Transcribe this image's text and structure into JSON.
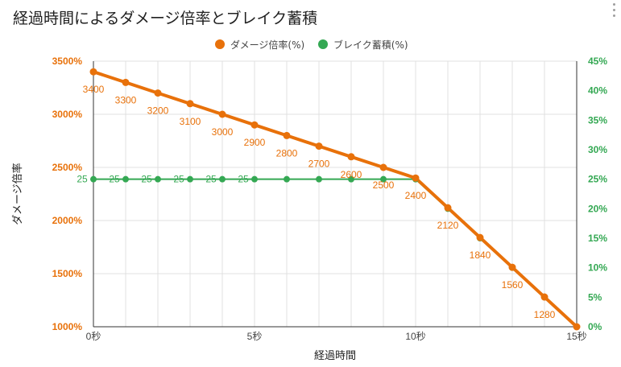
{
  "title": "経過時間によるダメージ倍率とブレイク蓄積",
  "colors": {
    "damage": "#e8710a",
    "break": "#34a853",
    "grid": "#e0e0e0"
  },
  "chart_data": {
    "type": "line",
    "title": "経過時間によるダメージ倍率とブレイク蓄積",
    "xlabel": "経過時間",
    "ylabel": "ダメージ倍率",
    "y2label": "",
    "x": [
      0,
      1,
      2,
      3,
      4,
      5,
      6,
      7,
      8,
      9,
      10,
      11,
      12,
      13,
      14,
      15
    ],
    "x_ticks": [
      {
        "value": 0,
        "label": "0秒"
      },
      {
        "value": 5,
        "label": "5秒"
      },
      {
        "value": 10,
        "label": "10秒"
      },
      {
        "value": 15,
        "label": "15秒"
      }
    ],
    "ylim": [
      1000,
      3500
    ],
    "y_ticks": [
      "1000%",
      "1500%",
      "2000%",
      "2500%",
      "3000%",
      "3500%"
    ],
    "y2lim": [
      0,
      45
    ],
    "y2_ticks": [
      "0%",
      "5%",
      "10%",
      "15%",
      "20%",
      "25%",
      "30%",
      "35%",
      "40%",
      "45%"
    ],
    "legend_position": "top-center",
    "grid": true,
    "series": [
      {
        "name": "ダメージ倍率(%)",
        "axis": "left",
        "values": [
          3400,
          3300,
          3200,
          3100,
          3000,
          2900,
          2800,
          2700,
          2600,
          2500,
          2400,
          2120,
          1840,
          1560,
          1280,
          1000
        ],
        "labels": [
          "3400",
          "3300",
          "3200",
          "3100",
          "3000",
          "2900",
          "2800",
          "2700",
          "2600",
          "2500",
          "2400",
          "2120",
          "1840",
          "1560",
          "1280",
          ""
        ]
      },
      {
        "name": "ブレイク蓄積(%)",
        "axis": "right",
        "values": [
          25,
          25,
          25,
          25,
          25,
          25,
          25,
          25,
          25,
          25,
          25,
          20,
          15,
          10,
          5,
          0
        ],
        "labels": [
          "25",
          "25",
          "25",
          "25",
          "25",
          "25",
          "",
          "",
          "",
          "",
          "",
          "",
          "",
          "",
          "",
          ""
        ]
      }
    ]
  }
}
